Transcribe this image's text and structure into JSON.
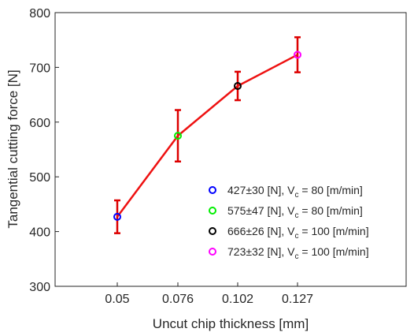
{
  "chart_data": {
    "type": "line",
    "title": "",
    "xlabel": "Uncut chip thickness [mm]",
    "ylabel": "Tangential cutting force [N]",
    "categories": [
      "0.05",
      "0.076",
      "0.102",
      "0.127"
    ],
    "ylim": [
      300,
      800
    ],
    "yticks": [
      "300",
      "400",
      "500",
      "600",
      "700",
      "800"
    ],
    "grid": false,
    "legend_position": "bottom-right",
    "line_color": "#ee1111",
    "errorbar_color": "#dd0000",
    "series": [
      {
        "values": [
          427,
          575,
          666,
          723
        ],
        "errors": [
          30,
          47,
          26,
          32
        ],
        "marker_colors": [
          "#0000ff",
          "#00ee00",
          "#000000",
          "#ff00ff"
        ]
      }
    ],
    "legend": [
      {
        "text": "427±30 [N], V",
        "sub": "c",
        "suffix": " = 80 [m/min]",
        "color": "#0000ff"
      },
      {
        "text": "575±47 [N], V",
        "sub": "c",
        "suffix": " = 80 [m/min]",
        "color": "#00ee00"
      },
      {
        "text": "666±26 [N], V",
        "sub": "c",
        "suffix": " = 100 [m/min]",
        "color": "#000000"
      },
      {
        "text": "723±32 [N], V",
        "sub": "c",
        "suffix": " = 100 [m/min]",
        "color": "#ff00ff"
      }
    ]
  }
}
